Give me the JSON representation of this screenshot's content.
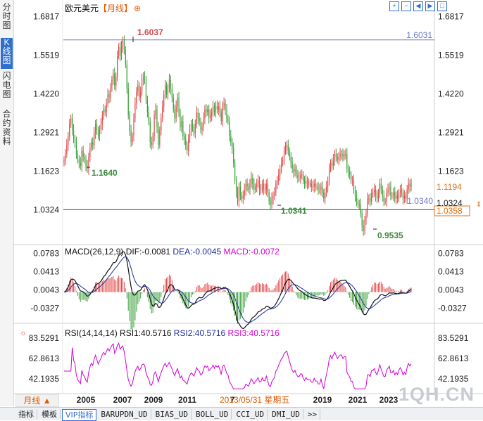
{
  "sidebar": {
    "tabs": [
      {
        "label": "分时图",
        "active": false
      },
      {
        "label": "K线图",
        "active": true
      },
      {
        "label": "闪电图",
        "active": false
      },
      {
        "label": "合约资料",
        "active": false
      }
    ]
  },
  "header": {
    "instrument": "欧元美元",
    "period": "【月线】",
    "plus": "⊕",
    "toolbar_icons": [
      "zoom-in-icon",
      "zoom-out-icon",
      "back-icon",
      "forward-icon",
      "fullscreen-icon"
    ]
  },
  "colors": {
    "up": "#e04848",
    "down": "#3aa03a",
    "dif": "#111111",
    "dea": "#1e2f9a",
    "macd": "#d400d4",
    "rsi": "#d400d4",
    "price_line": "#3a3aa0",
    "current": "#e07010"
  },
  "chart_data": [
    {
      "type": "candlestick",
      "name": "price",
      "yticks": [
        "1.6817",
        "1.5519",
        "1.4220",
        "1.2921",
        "1.1623",
        "1.0324"
      ],
      "ylim": [
        0.92,
        1.69
      ],
      "xticks": [
        "2005",
        "2007",
        "2009",
        "2011",
        "7",
        "2019",
        "2021",
        "2023"
      ],
      "annotations": {
        "high": "1.6037",
        "low_2005": "1.1640",
        "low_2017": "1.0341",
        "low_2022": "0.9535",
        "hline_label": "1.6031",
        "bottom_label": "1.0340",
        "current_price": "1.1194",
        "right_tag_1": "1.0324",
        "right_tag_2": "1.0358"
      },
      "hlines": [
        1.6031,
        1.0324
      ],
      "path": [
        1.2,
        1.22,
        1.25,
        1.28,
        1.32,
        1.34,
        1.3,
        1.27,
        1.26,
        1.22,
        1.2,
        1.19,
        1.18,
        1.23,
        1.21,
        1.2,
        1.18,
        1.17,
        1.21,
        1.24,
        1.26,
        1.25,
        1.29,
        1.32,
        1.3,
        1.28,
        1.3,
        1.32,
        1.35,
        1.37,
        1.36,
        1.39,
        1.42,
        1.41,
        1.44,
        1.47,
        1.49,
        1.45,
        1.48,
        1.55,
        1.58,
        1.55,
        1.58,
        1.6,
        1.57,
        1.52,
        1.44,
        1.35,
        1.3,
        1.26,
        1.28,
        1.34,
        1.39,
        1.43,
        1.45,
        1.41,
        1.43,
        1.47,
        1.48,
        1.47,
        1.4,
        1.36,
        1.33,
        1.26,
        1.25,
        1.28,
        1.35,
        1.37,
        1.31,
        1.25,
        1.3,
        1.34,
        1.38,
        1.42,
        1.45,
        1.42,
        1.44,
        1.47,
        1.44,
        1.41,
        1.37,
        1.34,
        1.38,
        1.41,
        1.36,
        1.31,
        1.33,
        1.28,
        1.27,
        1.25,
        1.23,
        1.27,
        1.3,
        1.32,
        1.31,
        1.29,
        1.32,
        1.36,
        1.34,
        1.33,
        1.3,
        1.31,
        1.34,
        1.37,
        1.36,
        1.37,
        1.34,
        1.35,
        1.36,
        1.38,
        1.36,
        1.38,
        1.37,
        1.38,
        1.36,
        1.33,
        1.38,
        1.39,
        1.37,
        1.34,
        1.33,
        1.28,
        1.26,
        1.24,
        1.19,
        1.13,
        1.09,
        1.06,
        1.11,
        1.08,
        1.07,
        1.08,
        1.1,
        1.12,
        1.11,
        1.1,
        1.12,
        1.14,
        1.12,
        1.1,
        1.11,
        1.12,
        1.13,
        1.1,
        1.1,
        1.12,
        1.1,
        1.1,
        1.12,
        1.09,
        1.06,
        1.05,
        1.07,
        1.08,
        1.09,
        1.12,
        1.13,
        1.15,
        1.17,
        1.19,
        1.2,
        1.23,
        1.24,
        1.25,
        1.23,
        1.21,
        1.19,
        1.17,
        1.16,
        1.17,
        1.15,
        1.14,
        1.14,
        1.15,
        1.15,
        1.13,
        1.12,
        1.13,
        1.12,
        1.12,
        1.12,
        1.11,
        1.11,
        1.12,
        1.11,
        1.11,
        1.1,
        1.1,
        1.11,
        1.09,
        1.07,
        1.09,
        1.11,
        1.13,
        1.17,
        1.19,
        1.18,
        1.2,
        1.22,
        1.21,
        1.2,
        1.21,
        1.22,
        1.22,
        1.21,
        1.22,
        1.22,
        1.17,
        1.16,
        1.15,
        1.13,
        1.13,
        1.1,
        1.08,
        1.06,
        1.05,
        1.05,
        1.02,
        0.98,
        0.96,
        1.0,
        1.02,
        1.07,
        1.07,
        1.06,
        1.09,
        1.09,
        1.1,
        1.08,
        1.07,
        1.09,
        1.12,
        1.1,
        1.08,
        1.06,
        1.06,
        1.09,
        1.1,
        1.11,
        1.08,
        1.08,
        1.09,
        1.07,
        1.08,
        1.07,
        1.09,
        1.1,
        1.09,
        1.07,
        1.08,
        1.07,
        1.1,
        1.12,
        1.11,
        1.12
      ]
    },
    {
      "type": "line",
      "name": "macd",
      "title": "MACD(26,12,9)",
      "dif_label": "DIF:-0.0081",
      "dea_label": "DEA:-0.0045",
      "macd_label": "MACD:-0.0072",
      "yticks": [
        "0.0783",
        "0.0413",
        "0.0043",
        "-0.0327"
      ],
      "ylim": [
        -0.06,
        0.09
      ]
    },
    {
      "type": "line",
      "name": "rsi",
      "title": "RSI(14,14,14)",
      "rsi1_label": "RSI1:40.5716",
      "rsi2_label": "RSI2:40.5716",
      "rsi3_label": "RSI3:40.5716",
      "yticks": [
        "83.5291",
        "62.8613",
        "42.1935"
      ],
      "ylim": [
        30,
        90
      ]
    }
  ],
  "cursor_date": "2013/05/31 星期五",
  "period_select": "月线 ▲",
  "bottom_tabs": [
    {
      "label": "指标",
      "cn": true
    },
    {
      "label": "模板",
      "cn": true
    },
    {
      "label": "VIP指标",
      "cn": true,
      "active": true
    },
    {
      "label": "BARUPDN_UD"
    },
    {
      "label": "BIAS_UD"
    },
    {
      "label": "BOLL_UD"
    },
    {
      "label": "CCI_UD"
    },
    {
      "label": "DMI_UD"
    },
    {
      "label": ">>"
    }
  ],
  "watermark": "1QH.CN"
}
